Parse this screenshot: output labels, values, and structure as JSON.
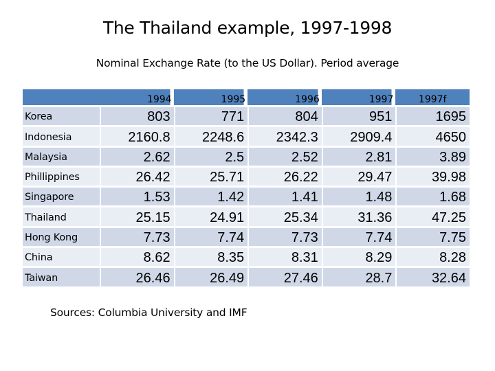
{
  "title": "The Thailand example, 1997-1998",
  "subtitle": "Nominal Exchange Rate (to the US Dollar). Period average",
  "source": "Sources: Columbia University and IMF",
  "table": {
    "corner": "",
    "years": [
      "1994",
      "1995",
      "1996",
      "1997",
      "1997f"
    ],
    "rows": [
      {
        "country": "Korea",
        "values": [
          "803",
          "771",
          "804",
          "951",
          "1695"
        ]
      },
      {
        "country": "Indonesia",
        "values": [
          "2160.8",
          "2248.6",
          "2342.3",
          "2909.4",
          "4650"
        ]
      },
      {
        "country": "Malaysia",
        "values": [
          "2.62",
          "2.5",
          "2.52",
          "2.81",
          "3.89"
        ]
      },
      {
        "country": "Phillippines",
        "values": [
          "26.42",
          "25.71",
          "26.22",
          "29.47",
          "39.98"
        ]
      },
      {
        "country": "Singapore",
        "values": [
          "1.53",
          "1.42",
          "1.41",
          "1.48",
          "1.68"
        ]
      },
      {
        "country": "Thailand",
        "values": [
          "25.15",
          "24.91",
          "25.34",
          "31.36",
          "47.25"
        ]
      },
      {
        "country": "Hong Kong",
        "values": [
          "7.73",
          "7.74",
          "7.73",
          "7.74",
          "7.75"
        ]
      },
      {
        "country": "China",
        "values": [
          "8.62",
          "8.35",
          "8.31",
          "8.29",
          "8.28"
        ]
      },
      {
        "country": "Taiwan",
        "values": [
          "26.46",
          "26.49",
          "27.46",
          "28.7",
          "32.64"
        ]
      }
    ]
  },
  "colors": {
    "header": "#4f81bd",
    "row_odd": "#d0d8e8",
    "row_even": "#e9edf4"
  }
}
